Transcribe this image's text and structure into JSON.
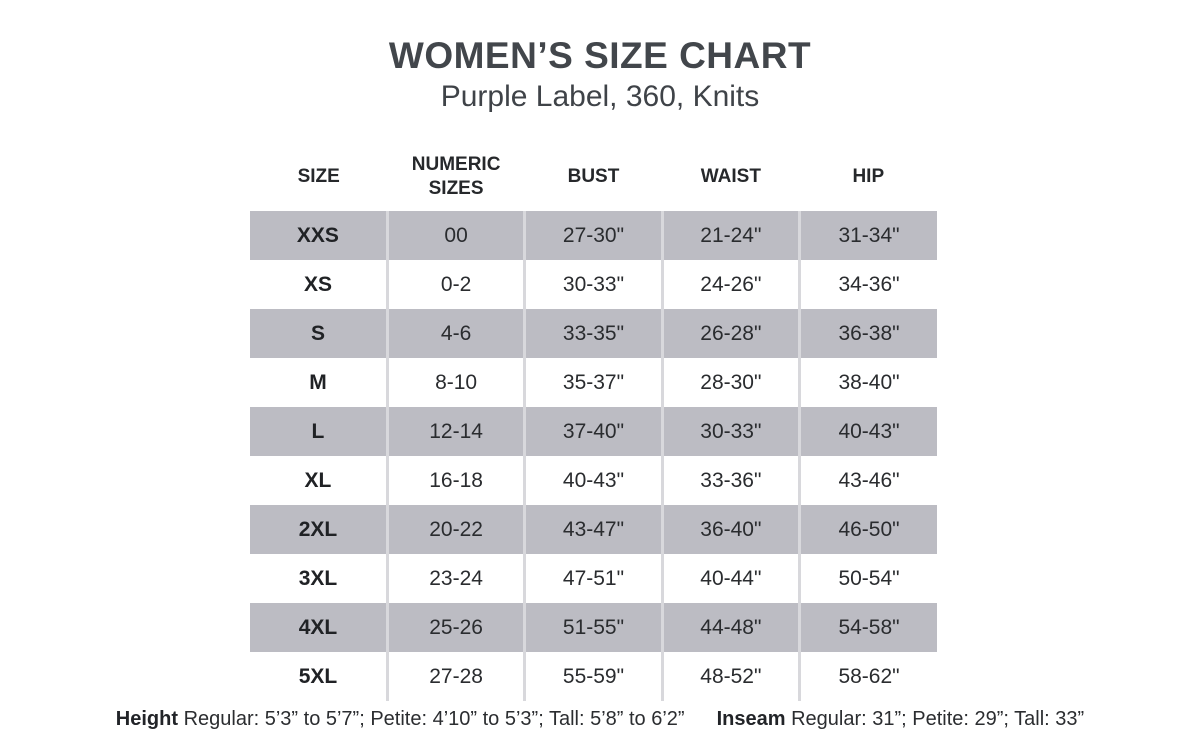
{
  "title": "WOMEN’S SIZE CHART",
  "subtitle": "Purple Label, 360, Knits",
  "table": {
    "columns": [
      "SIZE",
      "NUMERIC SIZES",
      "BUST",
      "WAIST",
      "HIP"
    ],
    "rows": [
      {
        "cells": [
          "XXS",
          "00",
          "27-30\"",
          "21-24\"",
          "31-34\""
        ]
      },
      {
        "cells": [
          "XS",
          "0-2",
          "30-33\"",
          "24-26\"",
          "34-36\""
        ]
      },
      {
        "cells": [
          "S",
          "4-6",
          "33-35\"",
          "26-28\"",
          "36-38\""
        ]
      },
      {
        "cells": [
          "M",
          "8-10",
          "35-37\"",
          "28-30\"",
          "38-40\""
        ]
      },
      {
        "cells": [
          "L",
          "12-14",
          "37-40\"",
          "30-33\"",
          "40-43\""
        ]
      },
      {
        "cells": [
          "XL",
          "16-18",
          "40-43\"",
          "33-36\"",
          "43-46\""
        ]
      },
      {
        "cells": [
          "2XL",
          "20-22",
          "43-47\"",
          "36-40\"",
          "46-50\""
        ]
      },
      {
        "cells": [
          "3XL",
          "23-24",
          "47-51\"",
          "40-44\"",
          "50-54\""
        ]
      },
      {
        "cells": [
          "4XL",
          "25-26",
          "51-55\"",
          "44-48\"",
          "54-58\""
        ]
      },
      {
        "cells": [
          "5XL",
          "27-28",
          "55-59\"",
          "48-52\"",
          "58-62\""
        ]
      }
    ]
  },
  "footnotes": {
    "height_label": "Height",
    "height_text": " Regular: 5’3” to 5’7”; Petite: 4’10” to 5’3”; Tall: 5’8” to 6’2”",
    "inseam_label": "Inseam",
    "inseam_text": " Regular: 31”;  Petite: 29”; Tall: 33”"
  },
  "colors": {
    "row_gray": "#bcbcc3",
    "column_separator": "#d8d8dc",
    "title_text": "#42464b",
    "body_text": "#2a2c2f"
  },
  "chart_data": {
    "type": "table",
    "title": "WOMEN’S SIZE CHART",
    "subtitle": "Purple Label, 360, Knits",
    "columns": [
      "SIZE",
      "NUMERIC SIZES",
      "BUST",
      "WAIST",
      "HIP"
    ],
    "rows": [
      [
        "XXS",
        "00",
        "27-30\"",
        "21-24\"",
        "31-34\""
      ],
      [
        "XS",
        "0-2",
        "30-33\"",
        "24-26\"",
        "34-36\""
      ],
      [
        "S",
        "4-6",
        "33-35\"",
        "26-28\"",
        "36-38\""
      ],
      [
        "M",
        "8-10",
        "35-37\"",
        "28-30\"",
        "38-40\""
      ],
      [
        "L",
        "12-14",
        "37-40\"",
        "30-33\"",
        "40-43\""
      ],
      [
        "XL",
        "16-18",
        "40-43\"",
        "33-36\"",
        "43-46\""
      ],
      [
        "2XL",
        "20-22",
        "43-47\"",
        "36-40\"",
        "46-50\""
      ],
      [
        "3XL",
        "23-24",
        "47-51\"",
        "40-44\"",
        "50-54\""
      ],
      [
        "4XL",
        "25-26",
        "51-55\"",
        "44-48\"",
        "54-58\""
      ],
      [
        "5XL",
        "27-28",
        "55-59\"",
        "48-52\"",
        "58-62\""
      ]
    ],
    "notes": [
      "Height Regular: 5’3” to 5’7”; Petite: 4’10” to 5’3”; Tall: 5’8” to 6’2”",
      "Inseam Regular: 31”;  Petite: 29”; Tall: 33”"
    ],
    "layout": "alternating gray/white rows starting gray; no outer border; light vertical column separators"
  }
}
